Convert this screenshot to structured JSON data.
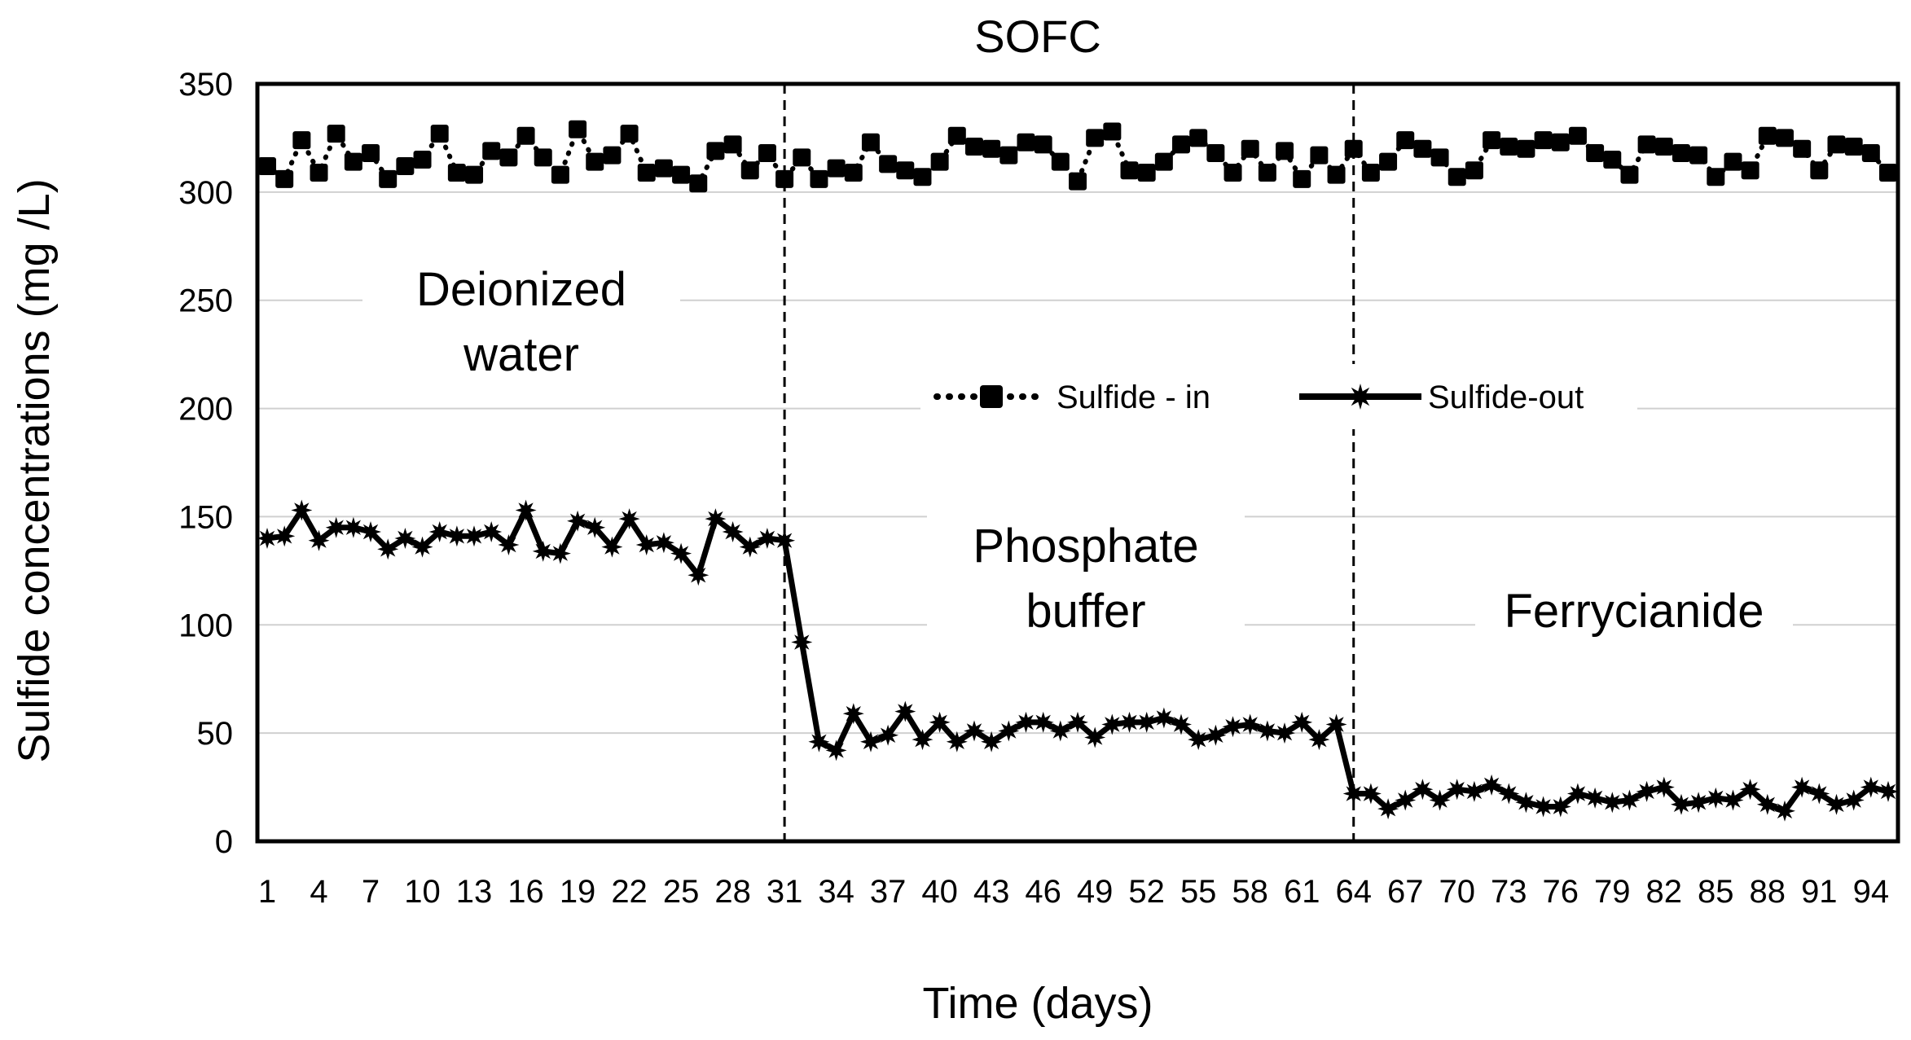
{
  "chart_data": {
    "type": "line",
    "title": "SOFC",
    "xlabel": "Time (days)",
    "ylabel": "Sulfide concentrations (mg /L)",
    "ylim": [
      0,
      350
    ],
    "xlim": [
      1,
      95
    ],
    "yticks": [
      "0",
      "50",
      "100",
      "150",
      "200",
      "250",
      "300",
      "350"
    ],
    "xticks": [
      "1",
      "4",
      "7",
      "10",
      "13",
      "16",
      "19",
      "22",
      "25",
      "28",
      "31",
      "34",
      "37",
      "40",
      "43",
      "46",
      "49",
      "52",
      "55",
      "58",
      "61",
      "64",
      "67",
      "70",
      "73",
      "76",
      "79",
      "82",
      "85",
      "88",
      "91",
      "94"
    ],
    "grid": "horizontal",
    "legend": "center",
    "phase_boundaries": [
      31,
      64
    ],
    "region_labels": [
      {
        "line1": "Deionized",
        "line2": "water"
      },
      {
        "line1": "Phosphate",
        "line2": "buffer"
      },
      {
        "line1": "Ferrycianide",
        "line2": ""
      }
    ],
    "series": [
      {
        "name": "Sulfide - in",
        "style": "dotted-square",
        "values": [
          312,
          306,
          324,
          309,
          327,
          314,
          318,
          306,
          312,
          315,
          327,
          309,
          308,
          319,
          316,
          326,
          316,
          308,
          329,
          314,
          317,
          327,
          309,
          311,
          308,
          304,
          319,
          322,
          310,
          318,
          306,
          316,
          306,
          311,
          309,
          323,
          313,
          310,
          307,
          314,
          326,
          321,
          320,
          317,
          323,
          322,
          314,
          305,
          325,
          328,
          310,
          309,
          314,
          322,
          325,
          318,
          309,
          320,
          309,
          319,
          306,
          317,
          308,
          320,
          309,
          314,
          324,
          320,
          316,
          307,
          310,
          324,
          321,
          320,
          324,
          323,
          326,
          318,
          315,
          308,
          322,
          321,
          318,
          317,
          307,
          314,
          310,
          326,
          325,
          320,
          310,
          322,
          321,
          318,
          309
        ]
      },
      {
        "name": "Sulfide-out",
        "style": "solid-star",
        "values": [
          140,
          141,
          153,
          139,
          145,
          145,
          143,
          135,
          140,
          136,
          143,
          141,
          141,
          143,
          137,
          153,
          134,
          133,
          148,
          145,
          136,
          149,
          137,
          138,
          133,
          123,
          149,
          143,
          136,
          140,
          139,
          92,
          46,
          42,
          59,
          46,
          49,
          60,
          47,
          55,
          46,
          51,
          46,
          51,
          55,
          55,
          51,
          55,
          48,
          54,
          55,
          55,
          57,
          54,
          47,
          49,
          53,
          54,
          51,
          50,
          55,
          47,
          54,
          22,
          22,
          15,
          19,
          24,
          19,
          24,
          23,
          26,
          22,
          18,
          16,
          16,
          22,
          20,
          18,
          19,
          23,
          25,
          17,
          18,
          20,
          19,
          24,
          17,
          14,
          25,
          22,
          17,
          19,
          25,
          23
        ]
      }
    ]
  }
}
